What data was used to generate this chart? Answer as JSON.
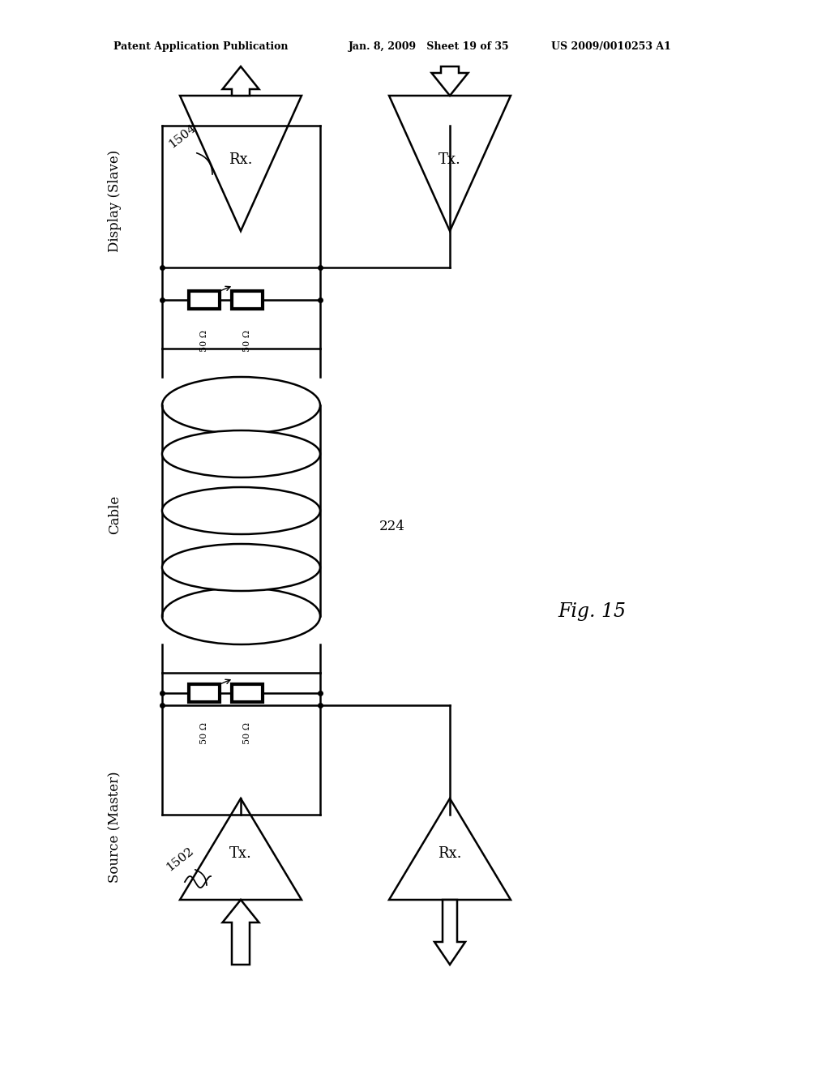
{
  "bg_color": "#ffffff",
  "header_left": "Patent Application Publication",
  "header_mid": "Jan. 8, 2009   Sheet 19 of 35",
  "header_right": "US 2009/0010253 A1",
  "fig_label": "Fig. 15",
  "display_label": "Display (Slave)",
  "source_label": "Source (Master)",
  "cable_label": "Cable",
  "label_1504": "1504",
  "label_1502": "1502",
  "label_224": "224",
  "res_label": "50 Ω",
  "rx_label": "Rx.",
  "tx_label": "Tx.",
  "lw": 1.8
}
